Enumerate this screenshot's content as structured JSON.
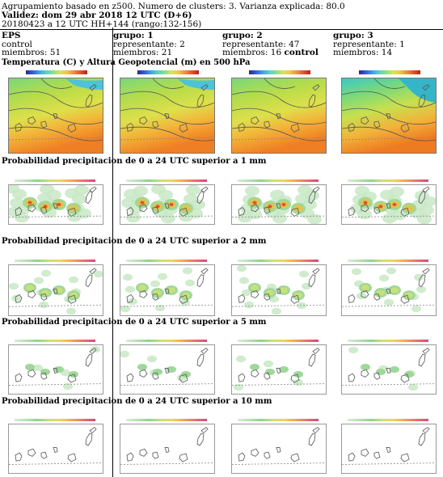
{
  "header": {
    "line1": "Agrupamiento basado en z500. Numero de clusters: 3. Varianza explicada: 80.0",
    "line2": "Validez: dom 29 abr 2018 12 UTC (D+6)",
    "line3": "20180423 a 12 UTC HH+144 (rango:132-156)"
  },
  "columns": [
    {
      "title": "EPS",
      "line2": "control",
      "line3": "miembros: 51"
    },
    {
      "title": "grupo: 1",
      "line2": "representante: 2",
      "line3": "miembros: 21"
    },
    {
      "title": "grupo: 2",
      "line2": "representante: 47",
      "line3_plain": "miembros: 16",
      "line3_bold": "control"
    },
    {
      "title": "grupo: 3",
      "line2": "representante: 1",
      "line3": "miembros: 14"
    }
  ],
  "sections": {
    "temperature": "Temperatura (C) y Altura Geopotencial (m) en 500 hPa",
    "p1": "Probabilidad precipitacion de 0 a 24 UTC superior a 1 mm",
    "p2": "Probabilidad precipitacion de 0 a 24 UTC superior a 2 mm",
    "p5": "Probabilidad precipitacion de 0 a 24 UTC superior a 5 mm",
    "p10": "Probabilidad precipitacion de 0 a 24 UTC superior a 10 mm"
  }
}
